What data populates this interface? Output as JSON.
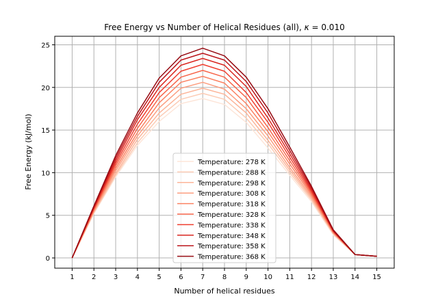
{
  "chart_data": {
    "type": "line",
    "title": "Free Energy vs Number of Helical Residues (all), ",
    "title_kappa": "κ",
    "title_value": " = 0.010",
    "xlabel": "Number of helical residues",
    "ylabel": "Free Energy (kJ/mol)",
    "xlim": [
      0.2,
      15.8
    ],
    "ylim": [
      -1.2,
      26.0
    ],
    "x": [
      1,
      2,
      3,
      4,
      5,
      6,
      7,
      8,
      9,
      10,
      11,
      12,
      13,
      14,
      15
    ],
    "xticks": [
      "1",
      "2",
      "3",
      "4",
      "5",
      "6",
      "7",
      "8",
      "9",
      "10",
      "11",
      "12",
      "13",
      "14",
      "15"
    ],
    "yticks": [
      0,
      5,
      10,
      15,
      20,
      25
    ],
    "grid": true,
    "legend_position": "lower center",
    "series": [
      {
        "name": "Temperature: 278 K",
        "color": "#fde5d8",
        "values": [
          0,
          5.2,
          9.5,
          13.2,
          16.0,
          18.1,
          18.7,
          18.0,
          15.9,
          12.9,
          9.7,
          6.6,
          2.7,
          0.4,
          0.2
        ]
      },
      {
        "name": "Temperature: 288 K",
        "color": "#fccbb4",
        "values": [
          0,
          5.3,
          9.7,
          13.5,
          16.5,
          18.6,
          19.3,
          18.6,
          16.4,
          13.4,
          10.0,
          6.8,
          2.8,
          0.4,
          0.2
        ]
      },
      {
        "name": "Temperature: 298 K",
        "color": "#fcb498",
        "values": [
          0,
          5.4,
          9.9,
          13.9,
          17.0,
          19.2,
          19.9,
          19.2,
          17.0,
          13.8,
          10.3,
          7.0,
          2.9,
          0.4,
          0.2
        ]
      },
      {
        "name": "Temperature: 308 K",
        "color": "#fc9d7f",
        "values": [
          0,
          5.5,
          10.2,
          14.3,
          17.6,
          19.9,
          20.6,
          19.8,
          17.5,
          14.3,
          10.6,
          7.2,
          2.9,
          0.4,
          0.2
        ]
      },
      {
        "name": "Temperature: 318 K",
        "color": "#fb8161",
        "values": [
          0,
          5.6,
          10.5,
          14.7,
          18.2,
          20.6,
          21.3,
          20.5,
          18.1,
          14.8,
          11.0,
          7.4,
          3.0,
          0.4,
          0.2
        ]
      },
      {
        "name": "Temperature: 328 K",
        "color": "#f7654a",
        "values": [
          0,
          5.7,
          10.8,
          15.2,
          18.8,
          21.2,
          22.0,
          21.2,
          18.8,
          15.3,
          11.4,
          7.6,
          3.1,
          0.4,
          0.2
        ]
      },
      {
        "name": "Temperature: 338 K",
        "color": "#ef3d2e",
        "values": [
          0,
          5.8,
          11.1,
          15.7,
          19.4,
          21.9,
          22.7,
          21.9,
          19.4,
          15.9,
          11.8,
          7.8,
          3.1,
          0.4,
          0.2
        ]
      },
      {
        "name": "Temperature: 348 K",
        "color": "#d9261f",
        "values": [
          0,
          5.9,
          11.4,
          16.2,
          20.0,
          22.6,
          23.4,
          22.6,
          20.1,
          16.4,
          12.2,
          8.0,
          3.2,
          0.4,
          0.2
        ]
      },
      {
        "name": "Temperature: 358 K",
        "color": "#bb141a",
        "values": [
          0,
          6.0,
          11.7,
          16.6,
          20.6,
          23.2,
          24.0,
          23.2,
          20.7,
          17.0,
          12.6,
          8.2,
          3.2,
          0.4,
          0.2
        ]
      },
      {
        "name": "Temperature: 368 K",
        "color": "#960b13",
        "values": [
          0,
          6.1,
          12.0,
          17.0,
          21.1,
          23.7,
          24.6,
          23.7,
          21.2,
          17.5,
          13.0,
          8.4,
          3.3,
          0.4,
          0.2
        ]
      }
    ]
  }
}
